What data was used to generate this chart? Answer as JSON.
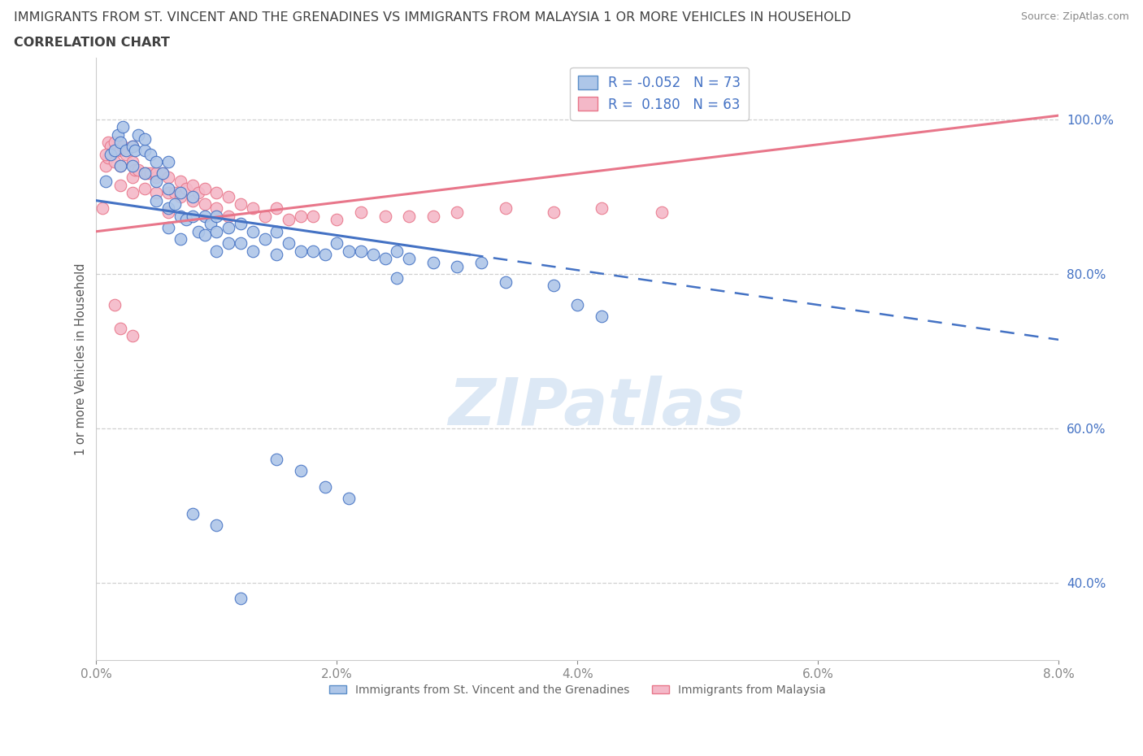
{
  "title_line1": "IMMIGRANTS FROM ST. VINCENT AND THE GRENADINES VS IMMIGRANTS FROM MALAYSIA 1 OR MORE VEHICLES IN HOUSEHOLD",
  "title_line2": "CORRELATION CHART",
  "source_text": "Source: ZipAtlas.com",
  "ylabel": "1 or more Vehicles in Household",
  "xlim": [
    0.0,
    0.08
  ],
  "ylim": [
    0.3,
    1.08
  ],
  "xticks": [
    0.0,
    0.02,
    0.04,
    0.06,
    0.08
  ],
  "yticks": [
    0.4,
    0.6,
    0.8,
    1.0
  ],
  "watermark": "ZIPatlas",
  "legend_entries": [
    {
      "label": "Immigrants from St. Vincent and the Grenadines",
      "color": "#aec6e8",
      "edge": "#5b8ec8",
      "R": "-0.052",
      "N": "73"
    },
    {
      "label": "Immigrants from Malaysia",
      "color": "#f4b8c8",
      "edge": "#e8768a",
      "R": "0.180",
      "N": "63"
    }
  ],
  "R_color": "#4472c4",
  "sv_color": "#4472c4",
  "my_color": "#e8768a",
  "sv_dot_color": "#aec6e8",
  "my_dot_color": "#f4b8c8",
  "background_color": "#ffffff",
  "grid_color": "#d0d0d0",
  "title_color": "#404040",
  "axis_label_color": "#4472c4",
  "watermark_color": "#dce8f5",
  "sv_trend_x0": 0.0,
  "sv_trend_x_solid_end": 0.031,
  "sv_trend_x1": 0.08,
  "sv_trend_y0": 0.895,
  "sv_trend_y1": 0.715,
  "my_trend_x0": 0.0,
  "my_trend_x1": 0.08,
  "my_trend_y0": 0.855,
  "my_trend_y1": 1.005,
  "sv_x": [
    0.0008,
    0.0012,
    0.0015,
    0.0018,
    0.002,
    0.002,
    0.0022,
    0.0025,
    0.003,
    0.003,
    0.0032,
    0.0035,
    0.004,
    0.004,
    0.004,
    0.0045,
    0.005,
    0.005,
    0.005,
    0.0055,
    0.006,
    0.006,
    0.006,
    0.006,
    0.0065,
    0.007,
    0.007,
    0.007,
    0.0075,
    0.008,
    0.008,
    0.0085,
    0.009,
    0.009,
    0.0095,
    0.01,
    0.01,
    0.01,
    0.011,
    0.011,
    0.012,
    0.012,
    0.013,
    0.013,
    0.014,
    0.015,
    0.015,
    0.016,
    0.017,
    0.018,
    0.019,
    0.02,
    0.021,
    0.022,
    0.023,
    0.024,
    0.025,
    0.026,
    0.028,
    0.03,
    0.015,
    0.017,
    0.019,
    0.021,
    0.032,
    0.034,
    0.038,
    0.04,
    0.042,
    0.025,
    0.008,
    0.01,
    0.012
  ],
  "sv_y": [
    0.92,
    0.955,
    0.96,
    0.98,
    0.97,
    0.94,
    0.99,
    0.96,
    0.965,
    0.94,
    0.96,
    0.98,
    0.96,
    0.93,
    0.975,
    0.955,
    0.945,
    0.92,
    0.895,
    0.93,
    0.945,
    0.91,
    0.885,
    0.86,
    0.89,
    0.905,
    0.875,
    0.845,
    0.87,
    0.9,
    0.875,
    0.855,
    0.875,
    0.85,
    0.865,
    0.875,
    0.855,
    0.83,
    0.86,
    0.84,
    0.865,
    0.84,
    0.855,
    0.83,
    0.845,
    0.855,
    0.825,
    0.84,
    0.83,
    0.83,
    0.825,
    0.84,
    0.83,
    0.83,
    0.825,
    0.82,
    0.83,
    0.82,
    0.815,
    0.81,
    0.56,
    0.545,
    0.525,
    0.51,
    0.815,
    0.79,
    0.785,
    0.76,
    0.745,
    0.795,
    0.49,
    0.475,
    0.38
  ],
  "my_x": [
    0.0005,
    0.0008,
    0.001,
    0.001,
    0.0012,
    0.0015,
    0.0015,
    0.002,
    0.002,
    0.002,
    0.0022,
    0.0025,
    0.003,
    0.003,
    0.003,
    0.003,
    0.0032,
    0.0035,
    0.004,
    0.004,
    0.0042,
    0.0045,
    0.005,
    0.005,
    0.005,
    0.0055,
    0.006,
    0.006,
    0.006,
    0.0065,
    0.007,
    0.007,
    0.0075,
    0.008,
    0.008,
    0.0085,
    0.009,
    0.009,
    0.01,
    0.01,
    0.011,
    0.011,
    0.012,
    0.013,
    0.014,
    0.015,
    0.016,
    0.017,
    0.018,
    0.02,
    0.022,
    0.024,
    0.026,
    0.028,
    0.03,
    0.034,
    0.038,
    0.042,
    0.047,
    0.0008,
    0.0015,
    0.002,
    0.003
  ],
  "my_y": [
    0.885,
    0.94,
    0.97,
    0.95,
    0.965,
    0.97,
    0.945,
    0.96,
    0.94,
    0.915,
    0.965,
    0.955,
    0.965,
    0.945,
    0.925,
    0.905,
    0.935,
    0.935,
    0.93,
    0.91,
    0.93,
    0.93,
    0.925,
    0.905,
    0.93,
    0.93,
    0.925,
    0.905,
    0.88,
    0.905,
    0.92,
    0.9,
    0.91,
    0.915,
    0.895,
    0.905,
    0.91,
    0.89,
    0.905,
    0.885,
    0.9,
    0.875,
    0.89,
    0.885,
    0.875,
    0.885,
    0.87,
    0.875,
    0.875,
    0.87,
    0.88,
    0.875,
    0.875,
    0.875,
    0.88,
    0.885,
    0.88,
    0.885,
    0.88,
    0.955,
    0.76,
    0.73,
    0.72
  ]
}
